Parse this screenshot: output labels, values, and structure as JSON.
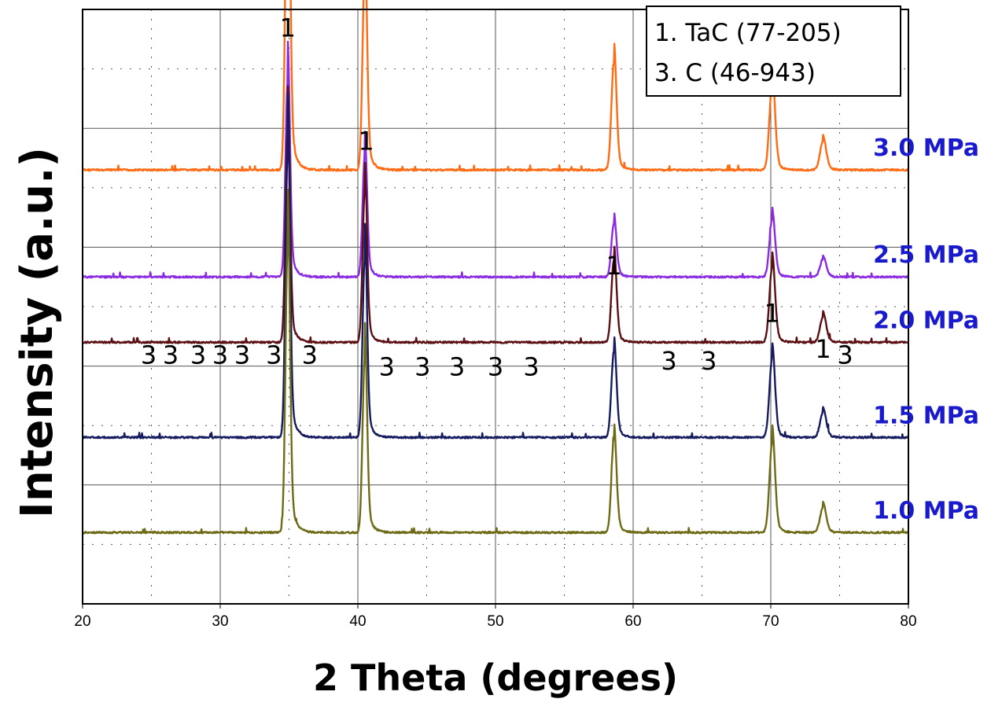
{
  "chart_data": {
    "type": "line",
    "xlabel": "2 Theta (degrees)",
    "ylabel": "Intensity (a.u.)",
    "xlim": [
      20,
      80
    ],
    "x_ticks": [
      "20",
      "30",
      "40",
      "50",
      "60",
      "70",
      "80"
    ],
    "grid": true,
    "legend": {
      "placement": "top-right",
      "entries": [
        "1. TaC (77-205)",
        "3. C (46-943)"
      ]
    },
    "peaks_tac": [
      34.9,
      40.5,
      58.6,
      70.1,
      73.8
    ],
    "peaks_c": [
      26.0,
      28.5,
      31.0,
      33.0,
      36.5,
      39.5,
      42.5,
      45.2,
      48.5,
      52.0,
      61.3,
      65.5,
      74.8
    ],
    "series": [
      {
        "name": "3.0 MPa",
        "color": "#ff6a13",
        "baseline_frac": 0.27,
        "peak_heights": [
          0.98,
          0.56,
          0.3,
          0.24,
          0.08
        ]
      },
      {
        "name": "2.5 MPa",
        "color": "#8a2be2",
        "baseline_frac": 0.45,
        "peak_heights": [
          0.55,
          0.34,
          0.15,
          0.16,
          0.05
        ]
      },
      {
        "name": "2.0 MPa",
        "color": "#5c0f12",
        "baseline_frac": 0.56,
        "peak_heights": [
          0.6,
          0.42,
          0.23,
          0.21,
          0.07
        ]
      },
      {
        "name": "1.5 MPa",
        "color": "#151b5e",
        "baseline_frac": 0.72,
        "peak_heights": [
          0.8,
          0.5,
          0.24,
          0.22,
          0.07
        ]
      },
      {
        "name": "1.0 MPa",
        "color": "#6e6b16",
        "baseline_frac": 0.88,
        "peak_heights": [
          0.8,
          0.49,
          0.26,
          0.25,
          0.07
        ]
      }
    ],
    "peak_markers": [
      {
        "text": "1",
        "x": 34.9,
        "level": 0.97
      },
      {
        "text": "1",
        "x": 40.6,
        "level": 0.78
      },
      {
        "text": "1",
        "x": 58.6,
        "level": 0.57
      },
      {
        "text": "1",
        "x": 70.1,
        "level": 0.49
      },
      {
        "text": "1",
        "x": 73.8,
        "level": 0.43
      },
      {
        "text": "3",
        "x": 24.8,
        "level": 0.42
      },
      {
        "text": "3",
        "x": 26.4,
        "level": 0.42
      },
      {
        "text": "3",
        "x": 28.4,
        "level": 0.42
      },
      {
        "text": "3",
        "x": 30.0,
        "level": 0.42
      },
      {
        "text": "3",
        "x": 31.6,
        "level": 0.42
      },
      {
        "text": "3",
        "x": 33.9,
        "level": 0.42
      },
      {
        "text": "3",
        "x": 36.5,
        "level": 0.42
      },
      {
        "text": "3",
        "x": 42.1,
        "level": 0.4
      },
      {
        "text": "3",
        "x": 44.7,
        "level": 0.4
      },
      {
        "text": "3",
        "x": 47.2,
        "level": 0.4
      },
      {
        "text": "3",
        "x": 50.0,
        "level": 0.4
      },
      {
        "text": "3",
        "x": 52.6,
        "level": 0.4
      },
      {
        "text": "3",
        "x": 62.6,
        "level": 0.41
      },
      {
        "text": "3",
        "x": 65.5,
        "level": 0.41
      },
      {
        "text": "3",
        "x": 75.4,
        "level": 0.42
      }
    ]
  },
  "colors": {
    "label_blue": "#1a1acd",
    "grid": "#555555",
    "axis": "#000000"
  }
}
